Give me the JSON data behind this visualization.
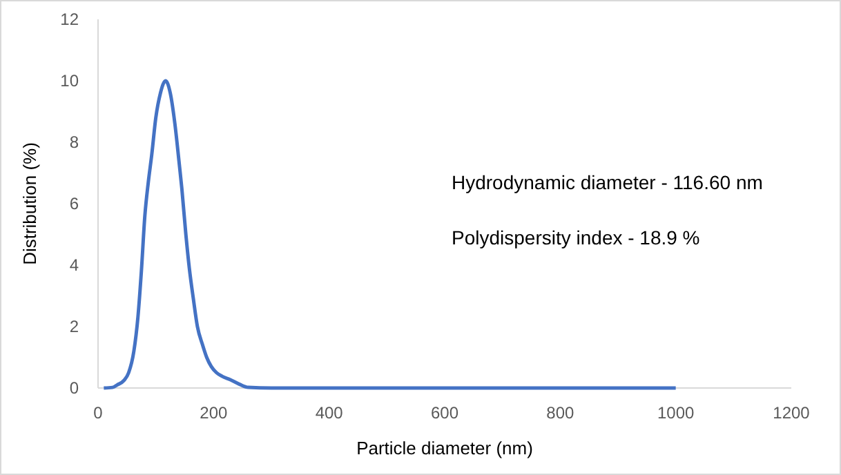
{
  "chart_data": {
    "type": "line",
    "xlabel": "Particle diameter (nm)",
    "ylabel": "Distribution (%)",
    "annotations": [
      "Hydrodynamic diameter - 116.60 nm",
      "Polydispersity index - 18.9 %"
    ],
    "xlim": [
      0,
      1200
    ],
    "xticks": [
      0,
      200,
      400,
      600,
      800,
      1000,
      1200
    ],
    "ylim": [
      0,
      12
    ],
    "yticks": [
      0,
      2,
      4,
      6,
      8,
      10,
      12
    ],
    "grid": false,
    "line_style": "solid",
    "series": [
      {
        "color": "#4472c4",
        "x": [
          10,
          25,
          33,
          45,
          53,
          62,
          69,
          75,
          81,
          87,
          93,
          100,
          108,
          117,
          125,
          133,
          140,
          145,
          152,
          158,
          165,
          172,
          181,
          188,
          196,
          205,
          215,
          229,
          245,
          260,
          300,
          400,
          500,
          600,
          700,
          800,
          900,
          1000
        ],
        "values": [
          0,
          0.02,
          0.1,
          0.25,
          0.5,
          1.2,
          2.3,
          3.8,
          5.6,
          6.7,
          7.6,
          8.8,
          9.6,
          10,
          9.6,
          8.6,
          7.4,
          6.5,
          5.0,
          3.9,
          2.9,
          2.0,
          1.4,
          1.0,
          0.7,
          0.5,
          0.38,
          0.27,
          0.12,
          0.02,
          0,
          0,
          0,
          0,
          0,
          0,
          0,
          0
        ]
      }
    ]
  }
}
